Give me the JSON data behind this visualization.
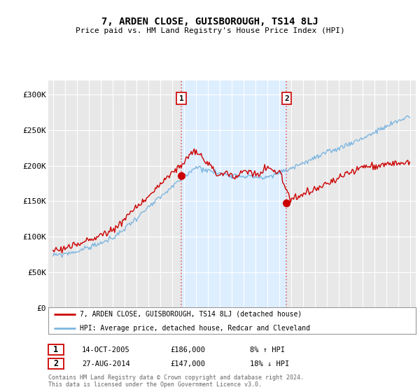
{
  "title": "7, ARDEN CLOSE, GUISBOROUGH, TS14 8LJ",
  "subtitle": "Price paid vs. HM Land Registry's House Price Index (HPI)",
  "legend_line1": "7, ARDEN CLOSE, GUISBOROUGH, TS14 8LJ (detached house)",
  "legend_line2": "HPI: Average price, detached house, Redcar and Cleveland",
  "sale1_date": "14-OCT-2005",
  "sale1_price": "£186,000",
  "sale1_hpi": "8% ↑ HPI",
  "sale2_date": "27-AUG-2014",
  "sale2_price": "£147,000",
  "sale2_hpi": "18% ↓ HPI",
  "footer": "Contains HM Land Registry data © Crown copyright and database right 2024.\nThis data is licensed under the Open Government Licence v3.0.",
  "hpi_color": "#7eb6e0",
  "price_color": "#cc0000",
  "vline_color": "#e06060",
  "span_color": "#ddeeff",
  "background_color": "#ffffff",
  "plot_bg_color": "#e8e8e8",
  "grid_color": "#ffffff",
  "ylim": [
    0,
    320000
  ],
  "yticks": [
    0,
    50000,
    100000,
    150000,
    200000,
    250000,
    300000
  ],
  "sale1_t": 2005.79,
  "sale1_p": 186000,
  "sale2_t": 2014.63,
  "sale2_p": 147000,
  "year_start": 1995,
  "year_end": 2025
}
